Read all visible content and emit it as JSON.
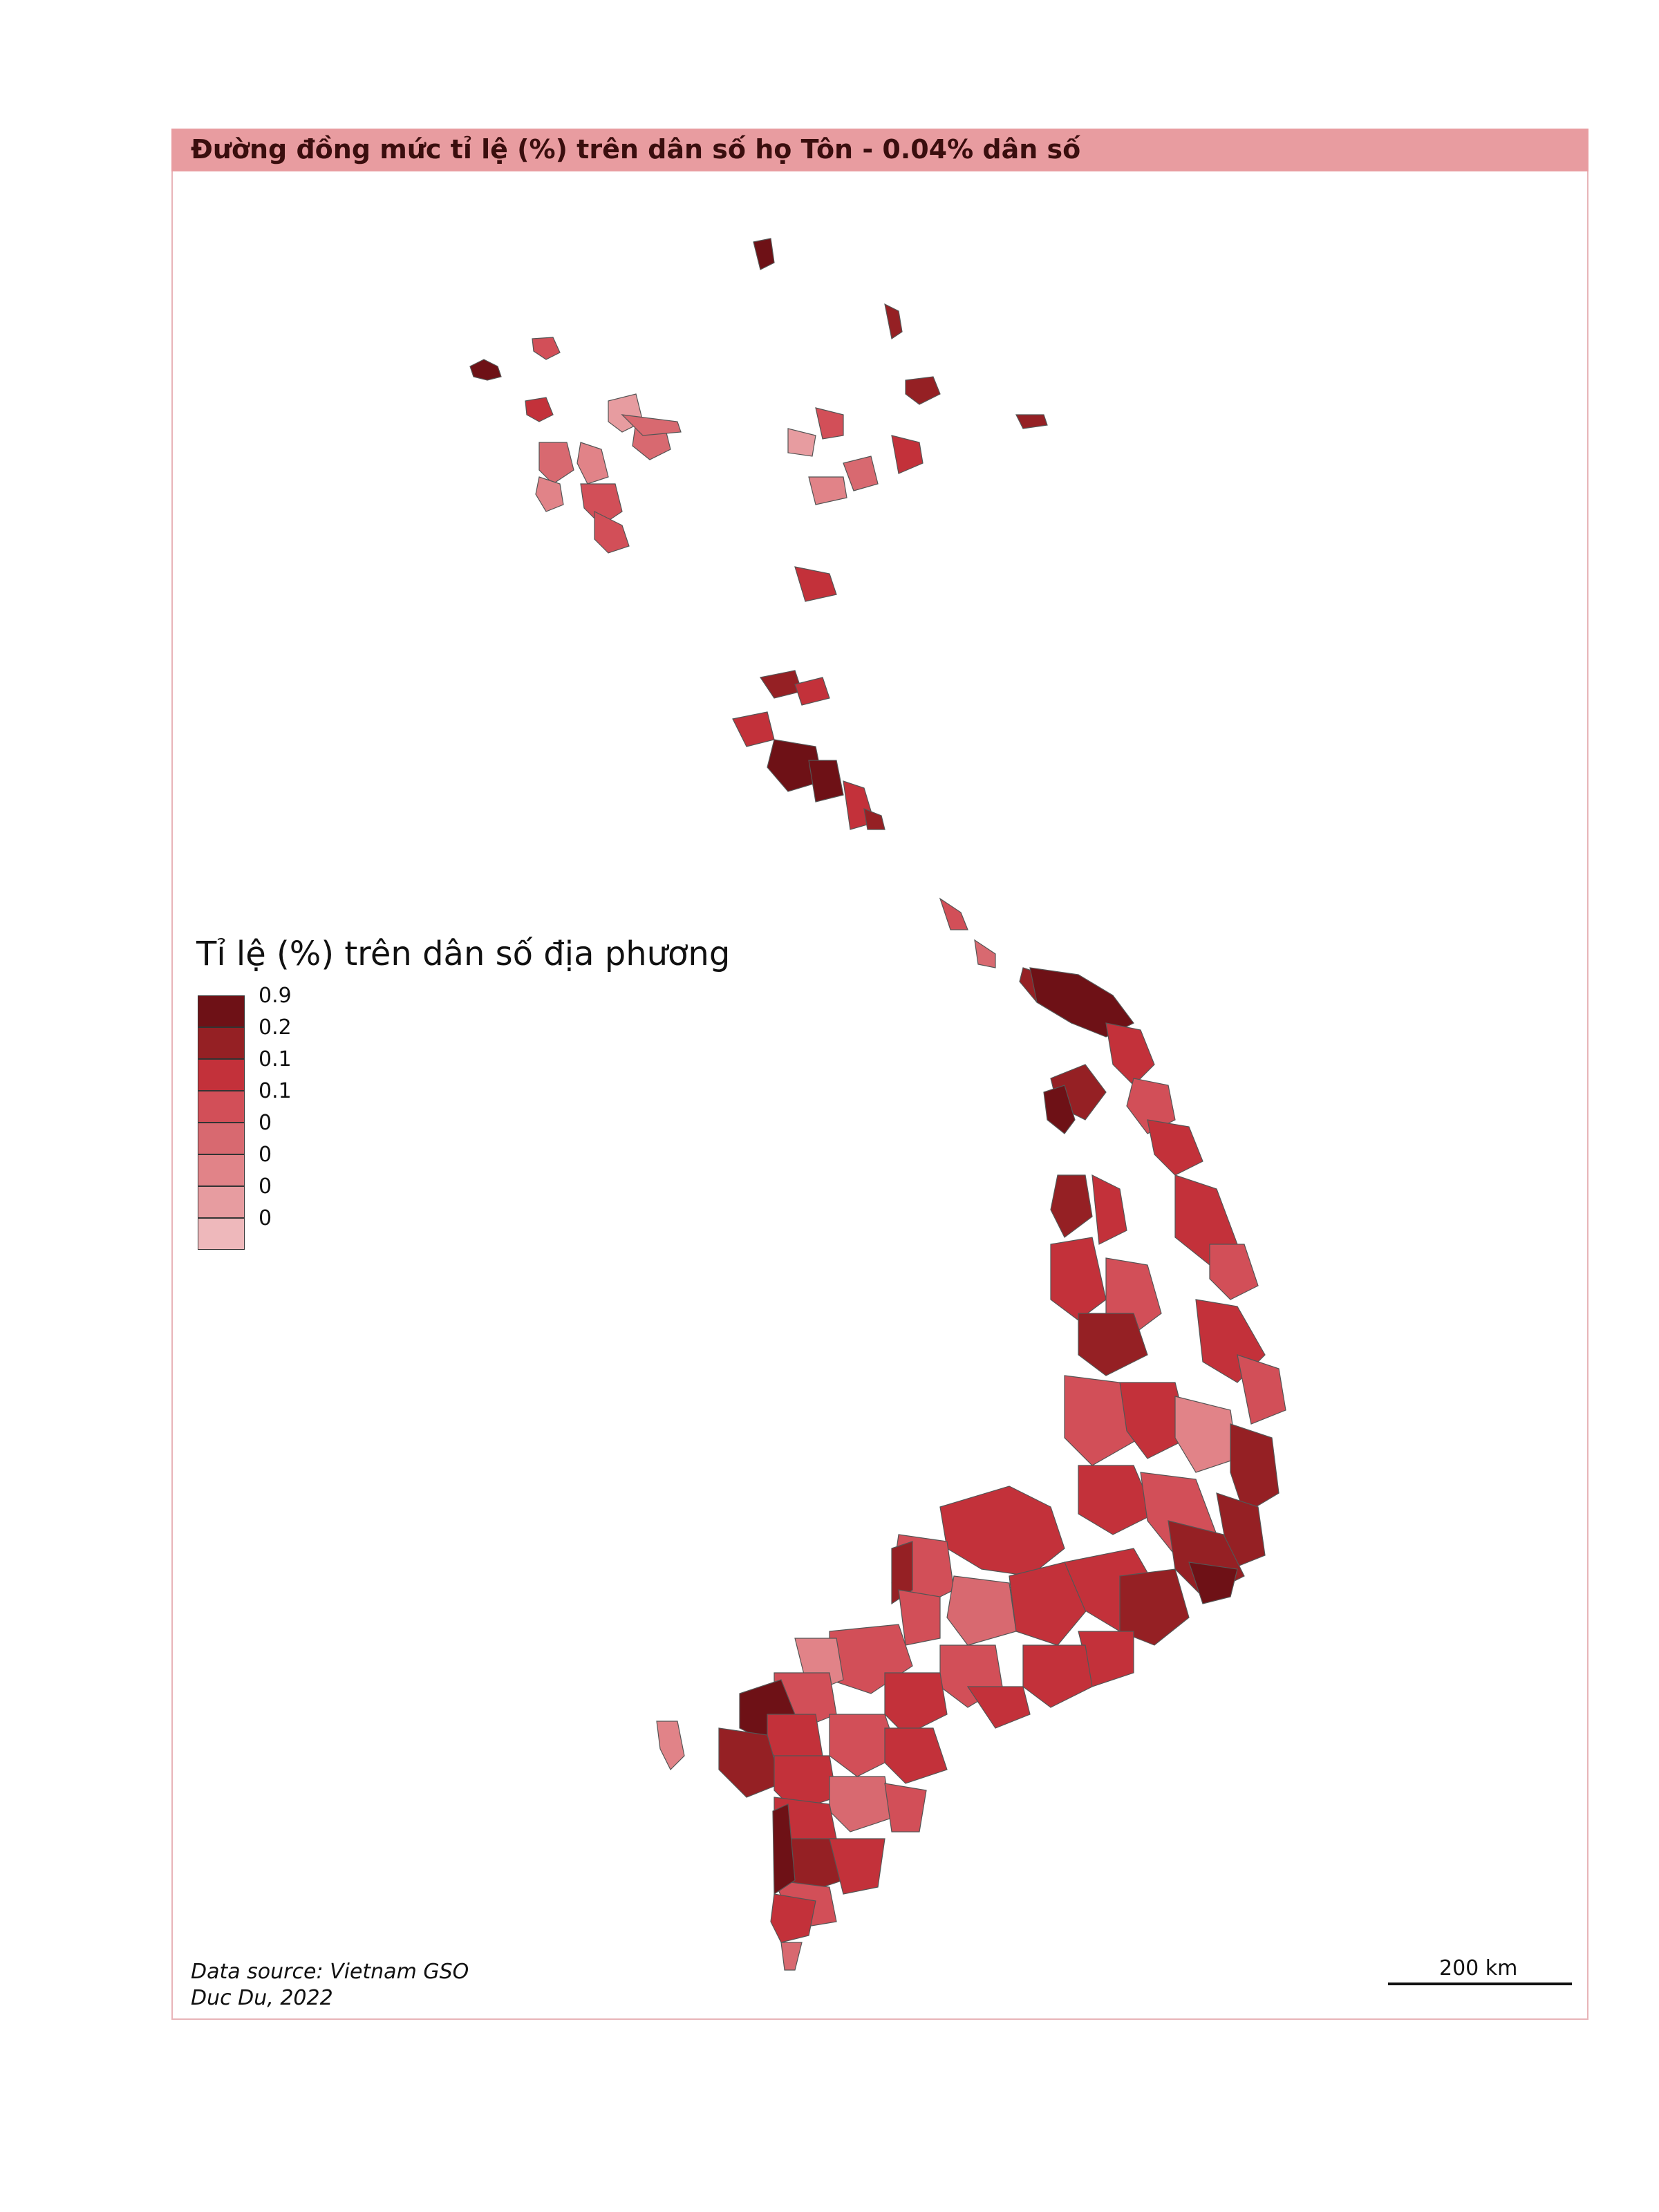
{
  "title": "Đường đồng mức tỉ lệ (%) trên dân số họ Tôn - 0.04% dân số",
  "legend": {
    "title": "Tỉ lệ (%) trên dân số địa phương",
    "items": [
      {
        "label": "0.9",
        "color": "#6e1116"
      },
      {
        "label": "0.2",
        "color": "#952024"
      },
      {
        "label": "0.1",
        "color": "#c3313a"
      },
      {
        "label": "0.1",
        "color": "#d24f58"
      },
      {
        "label": "0",
        "color": "#d86970"
      },
      {
        "label": "0",
        "color": "#e18388"
      },
      {
        "label": "0",
        "color": "#e79ca0"
      },
      {
        "label": "0",
        "color": "#eeb8bb"
      }
    ]
  },
  "source": {
    "line1": "Data source: Vietnam GSO",
    "line2": "Duc Du, 2022"
  },
  "scale": {
    "label": "200 km"
  },
  "colors": {
    "title_bar": "#e89ca0",
    "frame": "#e8b4b8"
  }
}
